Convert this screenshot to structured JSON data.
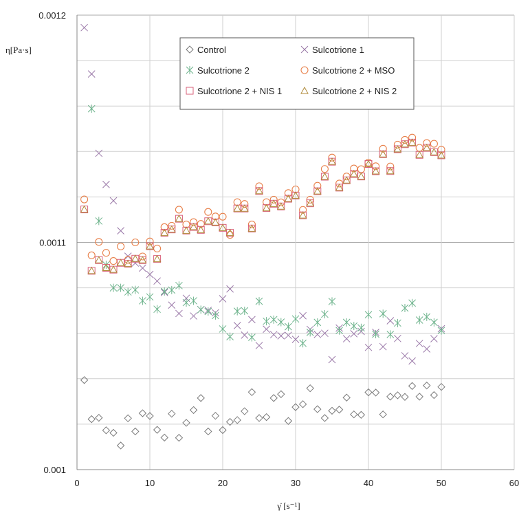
{
  "chart_data": {
    "type": "scatter",
    "xlabel": "γ̇ [s⁻¹]",
    "ylabel": "η[Pa·s]",
    "xlim": [
      0,
      60
    ],
    "ylim": [
      0.001,
      0.0012
    ],
    "x_ticks": [
      "0",
      "10",
      "20",
      "30",
      "40",
      "50",
      "60"
    ],
    "y_ticks": [
      "0.001",
      "0.0011",
      "0.0012"
    ],
    "y_tick_values": [
      0.001,
      0.0011,
      0.0012
    ],
    "grid": true,
    "legend_position": "top-center",
    "x": [
      1,
      2,
      3,
      4,
      5,
      6,
      7,
      8,
      9,
      10,
      11,
      12,
      13,
      14,
      15,
      16,
      17,
      18,
      19,
      20,
      21,
      22,
      23,
      24,
      25,
      26,
      27,
      28,
      29,
      30,
      31,
      32,
      33,
      34,
      35,
      36,
      37,
      38,
      39,
      40,
      41,
      42,
      43,
      44,
      45,
      46,
      47,
      48,
      49,
      50
    ],
    "series": [
      {
        "name": "Control",
        "marker": "diamond",
        "color": "#7a7a7a",
        "values": [
          0.0010394,
          0.0010222,
          0.0010228,
          0.0010173,
          0.0010162,
          0.0010106,
          0.0010226,
          0.0010168,
          0.0010248,
          0.0010236,
          0.0010175,
          0.0010141,
          0.0010246,
          0.001014,
          0.0010206,
          0.0010262,
          0.0010315,
          0.0010168,
          0.0010237,
          0.0010174,
          0.001021,
          0.0010218,
          0.0010257,
          0.0010341,
          0.0010227,
          0.0010231,
          0.0010315,
          0.0010332,
          0.0010214,
          0.0010275,
          0.0010288,
          0.0010358,
          0.0010266,
          0.0010227,
          0.0010259,
          0.0010264,
          0.0010317,
          0.0010243,
          0.0010241,
          0.001034,
          0.0010339,
          0.0010243,
          0.0010321,
          0.0010327,
          0.001032,
          0.0010368,
          0.0010321,
          0.001037,
          0.0010328,
          0.0010364
        ]
      },
      {
        "name": "Sulcotrione 1",
        "marker": "x",
        "color": "#9a78a8",
        "values": [
          0.0011945,
          0.0011741,
          0.0011392,
          0.0011255,
          0.0011183,
          0.0011051,
          0.0010939,
          0.0010909,
          0.0010887,
          0.0010859,
          0.001083,
          0.001078,
          0.0010724,
          0.0010687,
          0.0010754,
          0.0010676,
          0.0010704,
          0.0010701,
          0.001069,
          0.0010752,
          0.0010795,
          0.0010634,
          0.0010592,
          0.001066,
          0.0010546,
          0.0010618,
          0.0010594,
          0.0010589,
          0.0010591,
          0.0010573,
          0.0010677,
          0.0010617,
          0.0010595,
          0.00106,
          0.0010484,
          0.0010623,
          0.0010576,
          0.0010598,
          0.0010608,
          0.0010538,
          0.0010604,
          0.0010541,
          0.0010655,
          0.0010577,
          0.0010501,
          0.0010478,
          0.0010555,
          0.0010531,
          0.0010576,
          0.001062
        ]
      },
      {
        "name": "Sulcotrione 2",
        "marker": "asterisk",
        "color": "#6db38c",
        "values": [
          null,
          0.0011588,
          0.0011094,
          0.0010901,
          0.00108,
          0.00108,
          0.0010782,
          0.0010791,
          0.0010743,
          0.001076,
          0.0010706,
          0.0010784,
          0.001079,
          0.001081,
          0.0010735,
          0.0010743,
          0.0010704,
          0.0010696,
          0.0010678,
          0.0010619,
          0.0010585,
          0.0010697,
          0.0010699,
          0.0010582,
          0.0010741,
          0.0010653,
          0.001066,
          0.0010649,
          0.0010629,
          0.0010663,
          0.0010556,
          0.0010604,
          0.0010648,
          0.0010684,
          0.001074,
          0.0010612,
          0.0010648,
          0.0010632,
          0.0010624,
          0.0010682,
          0.0010596,
          0.0010686,
          0.0010595,
          0.0010645,
          0.0010711,
          0.0010733,
          0.0010658,
          0.0010672,
          0.0010648,
          0.0010612
        ]
      },
      {
        "name": "Sulcotrione 2 + MSO",
        "marker": "circle",
        "color": "#e8804a",
        "values": [
          0.0011189,
          0.0010943,
          0.0011002,
          0.0010954,
          0.0010918,
          0.0010982,
          0.0010923,
          0.0011,
          0.0010938,
          0.0011004,
          0.0010973,
          0.0011067,
          0.0011073,
          0.0011144,
          0.0011079,
          0.0011089,
          0.0011081,
          0.0011134,
          0.0011114,
          0.0011113,
          0.0011033,
          0.0011177,
          0.0011169,
          0.0011079,
          0.0011247,
          0.0011177,
          0.0011188,
          0.0011176,
          0.0011217,
          0.0011233,
          0.0011143,
          0.0011188,
          0.0011249,
          0.0011323,
          0.0011373,
          0.0011259,
          0.001129,
          0.0011325,
          0.0011322,
          0.0011351,
          0.0011335,
          0.0011412,
          0.0011334,
          0.001143,
          0.0011451,
          0.0011461,
          0.0011416,
          0.0011437,
          0.0011434,
          0.0011408
        ]
      },
      {
        "name": "Sulcotrione 2 + NIS 1",
        "marker": "square",
        "color": "#d9607a",
        "values": [
          0.0011145,
          0.0010875,
          0.0010922,
          0.0010888,
          0.001088,
          0.001091,
          0.0010906,
          0.0010928,
          0.0010922,
          0.0010983,
          0.0010927,
          0.0011042,
          0.0011057,
          0.0011104,
          0.0011052,
          0.0011068,
          0.0011055,
          0.0011093,
          0.0011088,
          0.0011064,
          0.0011042,
          0.0011149,
          0.0011149,
          0.0011061,
          0.0011226,
          0.0011151,
          0.001117,
          0.0011158,
          0.0011192,
          0.0011206,
          0.0011119,
          0.0011172,
          0.0011225,
          0.0011289,
          0.0011355,
          0.0011241,
          0.0011273,
          0.0011301,
          0.001129,
          0.0011345,
          0.0011313,
          0.0011388,
          0.0011314,
          0.001141,
          0.0011432,
          0.0011439,
          0.0011385,
          0.0011416,
          0.0011397,
          0.0011383
        ]
      },
      {
        "name": "Sulcotrione 2 + NIS 2",
        "marker": "triangle",
        "color": "#b08a3a",
        "values": [
          0.0011145,
          0.0010875,
          0.0010922,
          0.0010888,
          0.001088,
          0.001091,
          0.0010906,
          0.0010928,
          0.0010922,
          0.0010983,
          0.0010927,
          0.0011042,
          0.0011057,
          0.0011104,
          0.0011052,
          0.0011068,
          0.0011055,
          0.0011093,
          0.0011088,
          0.0011064,
          0.0011042,
          0.0011149,
          0.0011149,
          0.0011061,
          0.0011226,
          0.0011151,
          0.001117,
          0.0011158,
          0.0011192,
          0.0011206,
          0.0011119,
          0.0011172,
          0.0011225,
          0.0011289,
          0.0011355,
          0.0011241,
          0.0011273,
          0.0011301,
          0.001129,
          0.0011345,
          0.0011313,
          0.0011388,
          0.0011314,
          0.001141,
          0.0011432,
          0.0011439,
          0.0011385,
          0.0011416,
          0.0011397,
          0.0011383
        ]
      }
    ]
  }
}
